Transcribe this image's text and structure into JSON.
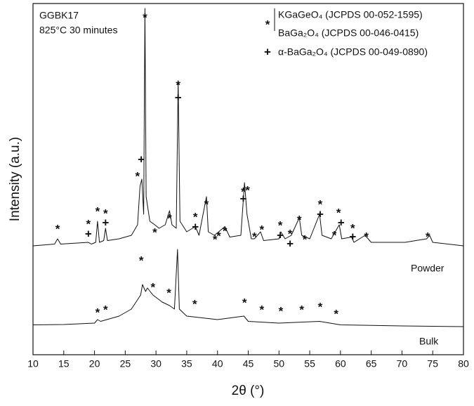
{
  "chart_data": {
    "type": "line",
    "xlabel": "2θ (°)",
    "ylabel": "Intensity (a.u.)",
    "sample_text": [
      "GGBK17",
      "825°C 30 minutes"
    ],
    "legend": [
      {
        "symbol": "*",
        "labels": [
          "KGaGeO₄ (JCPDS 00-052-1595)",
          "BaGa₂O₄ (JCPDS 00-046-0415)"
        ]
      },
      {
        "symbol": "+",
        "labels": [
          "α-BaGa₂O₄ (JCPDS 00-049-0890)"
        ]
      }
    ],
    "xlim": [
      10,
      80
    ],
    "xticks": [
      10,
      15,
      20,
      25,
      30,
      35,
      40,
      45,
      50,
      55,
      60,
      65,
      70,
      75,
      80
    ],
    "ylim": [
      0,
      100
    ],
    "series": [
      {
        "name": "Powder",
        "color": "#111111",
        "x": [
          10,
          13.5,
          14,
          14.5,
          19,
          19.5,
          20.2,
          20.5,
          20.8,
          21.5,
          21.8,
          22.1,
          24,
          26,
          27,
          27.4,
          27.7,
          28,
          28.2,
          28.4,
          29,
          29.8,
          30.5,
          31.5,
          32.2,
          32.6,
          33.3,
          33.6,
          33.9,
          35,
          36.4,
          37,
          38.2,
          38.5,
          39.5,
          40.2,
          41.2,
          42,
          43.8,
          44.4,
          44.8,
          45.5,
          46,
          47,
          47.5,
          50,
          50.3,
          51,
          52,
          53.3,
          53.7,
          55,
          56.6,
          57,
          58.5,
          59.8,
          60.2,
          61.8,
          62.2,
          64,
          65,
          70.5,
          74,
          74.5,
          75,
          80
        ],
        "values": [
          31,
          31.5,
          33,
          31.5,
          32,
          31.5,
          32,
          38,
          32,
          32.5,
          36,
          32.5,
          33,
          34,
          37,
          48,
          50,
          40,
          98.6,
          45,
          38,
          37,
          36,
          37,
          41,
          37,
          36,
          78,
          38,
          35,
          36.5,
          34,
          45,
          35,
          34,
          35,
          36.5,
          33.5,
          34,
          49,
          40,
          33,
          33,
          35,
          32.5,
          33,
          35,
          33,
          34,
          39,
          34,
          33,
          40,
          34,
          33,
          37,
          33,
          33.5,
          32,
          34,
          32,
          32,
          33,
          34,
          32,
          31
        ]
      },
      {
        "name": "Bulk",
        "color": "#111111",
        "x": [
          10,
          15,
          20,
          20.5,
          21,
          22,
          24,
          26,
          27.5,
          27.8,
          28.3,
          28.6,
          29.5,
          31,
          32.2,
          33,
          33.5,
          33.8,
          35,
          40,
          44.3,
          45,
          50,
          56.6,
          60,
          70,
          80
        ],
        "values": [
          8.5,
          8.6,
          9,
          10,
          9.5,
          10,
          11,
          13,
          17,
          20,
          18,
          19,
          17,
          15,
          14,
          13,
          30,
          13,
          11,
          10,
          11,
          9.5,
          9,
          9.5,
          8.5,
          8.2,
          8
        ]
      }
    ],
    "annotations": [
      {
        "text": "*",
        "x": 14,
        "y": 35.6
      },
      {
        "text": "+",
        "x": 19,
        "y": 34.2
      },
      {
        "text": "*",
        "x": 19,
        "y": 37
      },
      {
        "text": "*",
        "x": 20.5,
        "y": 40.6
      },
      {
        "text": "+",
        "x": 21.8,
        "y": 37.4
      },
      {
        "text": "*",
        "x": 21.8,
        "y": 40
      },
      {
        "text": "*",
        "x": 27,
        "y": 50.6
      },
      {
        "text": "+",
        "x": 27.6,
        "y": 55.4
      },
      {
        "text": "*",
        "x": 28.2,
        "y": 95.8
      },
      {
        "text": "*",
        "x": 29.8,
        "y": 34.6
      },
      {
        "text": "*",
        "x": 32.2,
        "y": 38.6
      },
      {
        "text": "+",
        "x": 33.6,
        "y": 73
      },
      {
        "text": "*",
        "x": 33.6,
        "y": 76.6
      },
      {
        "text": "+",
        "x": 36.4,
        "y": 36.2
      },
      {
        "text": "*",
        "x": 36.4,
        "y": 39
      },
      {
        "text": "*",
        "x": 38.2,
        "y": 42.6
      },
      {
        "text": "*",
        "x": 39.6,
        "y": 32.6
      },
      {
        "text": "*",
        "x": 40.2,
        "y": 33.6
      },
      {
        "text": "*",
        "x": 41.2,
        "y": 35
      },
      {
        "text": "+",
        "x": 44.2,
        "y": 44.2
      },
      {
        "text": "*",
        "x": 44.2,
        "y": 46.2
      },
      {
        "text": "*",
        "x": 44.9,
        "y": 46.6
      },
      {
        "text": "*",
        "x": 46,
        "y": 33.4
      },
      {
        "text": "*",
        "x": 47.2,
        "y": 35.4
      },
      {
        "text": "+",
        "x": 50.2,
        "y": 33.8
      },
      {
        "text": "*",
        "x": 50.2,
        "y": 36.6
      },
      {
        "text": "+",
        "x": 51.8,
        "y": 31.4
      },
      {
        "text": "*",
        "x": 51.8,
        "y": 34.2
      },
      {
        "text": "*",
        "x": 54.2,
        "y": 32.6
      },
      {
        "text": "*",
        "x": 53.3,
        "y": 38.2
      },
      {
        "text": "+",
        "x": 56.7,
        "y": 39.8
      },
      {
        "text": "*",
        "x": 56.7,
        "y": 42.6
      },
      {
        "text": "*",
        "x": 59,
        "y": 33.8
      },
      {
        "text": "+",
        "x": 60.1,
        "y": 37.4
      },
      {
        "text": "*",
        "x": 59.7,
        "y": 40.2
      },
      {
        "text": "+",
        "x": 62,
        "y": 33.4
      },
      {
        "text": "*",
        "x": 62,
        "y": 35.8
      },
      {
        "text": "*",
        "x": 64.2,
        "y": 33.4
      },
      {
        "text": "*",
        "x": 74.2,
        "y": 33.4
      },
      {
        "text": "*",
        "x": 27.6,
        "y": 26.6
      },
      {
        "text": "*",
        "x": 29.5,
        "y": 19
      },
      {
        "text": "*",
        "x": 32.1,
        "y": 17.4
      },
      {
        "text": "*",
        "x": 36.3,
        "y": 14.2
      },
      {
        "text": "*",
        "x": 20.5,
        "y": 11.8
      },
      {
        "text": "*",
        "x": 21.8,
        "y": 12.6
      },
      {
        "text": "*",
        "x": 44.4,
        "y": 14.6
      },
      {
        "text": "*",
        "x": 47.2,
        "y": 12.6
      },
      {
        "text": "*",
        "x": 50.3,
        "y": 12.2
      },
      {
        "text": "*",
        "x": 53.7,
        "y": 12.6
      },
      {
        "text": "*",
        "x": 56.7,
        "y": 13.4
      },
      {
        "text": "*",
        "x": 59.3,
        "y": 11.4
      }
    ]
  }
}
